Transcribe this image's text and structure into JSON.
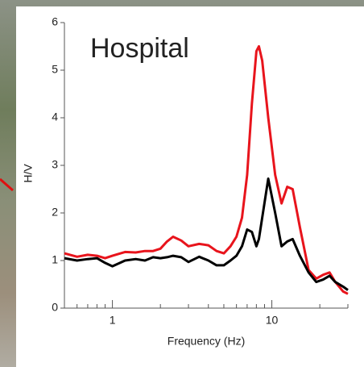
{
  "chart_data": {
    "type": "line",
    "annotation": "Hospital",
    "xlabel": "Frequency (Hz)",
    "ylabel": "H/V",
    "xscale": "log",
    "xlim": [
      0.5,
      30
    ],
    "xticks": [
      1,
      10
    ],
    "xminorticks": [
      0.5,
      0.6,
      0.7,
      0.8,
      0.9,
      2,
      3,
      4,
      5,
      6,
      7,
      8,
      9,
      20,
      30
    ],
    "ylim": [
      0,
      6
    ],
    "yticks": [
      0,
      1,
      2,
      3,
      4,
      5,
      6
    ],
    "x": [
      0.5,
      0.6,
      0.7,
      0.8,
      0.9,
      1.0,
      1.2,
      1.4,
      1.6,
      1.8,
      2.0,
      2.2,
      2.4,
      2.7,
      3.0,
      3.5,
      4.0,
      4.5,
      5.0,
      5.5,
      6.0,
      6.5,
      7.0,
      7.5,
      8.0,
      8.3,
      8.7,
      9.5,
      10.5,
      11.5,
      12.5,
      13.5,
      15,
      17,
      19,
      21,
      23,
      25,
      28,
      30
    ],
    "series": [
      {
        "color": "#e8141c",
        "values": [
          1.15,
          1.08,
          1.12,
          1.1,
          1.05,
          1.1,
          1.18,
          1.17,
          1.2,
          1.2,
          1.25,
          1.4,
          1.5,
          1.42,
          1.3,
          1.35,
          1.32,
          1.2,
          1.15,
          1.3,
          1.5,
          1.9,
          2.8,
          4.3,
          5.4,
          5.5,
          5.2,
          4.0,
          2.8,
          2.2,
          2.55,
          2.5,
          1.7,
          0.8,
          0.62,
          0.7,
          0.75,
          0.55,
          0.35,
          0.3
        ]
      },
      {
        "color": "#000000",
        "values": [
          1.05,
          1.0,
          1.03,
          1.05,
          0.95,
          0.88,
          1.0,
          1.03,
          1.0,
          1.07,
          1.05,
          1.07,
          1.1,
          1.07,
          0.97,
          1.08,
          1.0,
          0.9,
          0.9,
          1.0,
          1.1,
          1.3,
          1.65,
          1.6,
          1.3,
          1.45,
          1.9,
          2.72,
          2.0,
          1.3,
          1.4,
          1.45,
          1.1,
          0.75,
          0.55,
          0.6,
          0.68,
          0.55,
          0.45,
          0.38
        ]
      }
    ]
  }
}
